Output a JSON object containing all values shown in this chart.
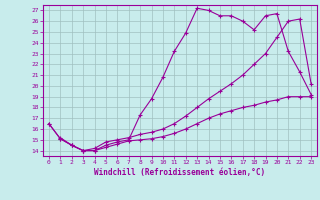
{
  "xlabel": "Windchill (Refroidissement éolien,°C)",
  "background_color": "#c8ecec",
  "grid_color": "#a0c0c0",
  "line_color": "#990099",
  "xlim": [
    -0.5,
    23.5
  ],
  "ylim": [
    13.5,
    27.5
  ],
  "xticks": [
    0,
    1,
    2,
    3,
    4,
    5,
    6,
    7,
    8,
    9,
    10,
    11,
    12,
    13,
    14,
    15,
    16,
    17,
    18,
    19,
    20,
    21,
    22,
    23
  ],
  "yticks": [
    14,
    15,
    16,
    17,
    18,
    19,
    20,
    21,
    22,
    23,
    24,
    25,
    26,
    27
  ],
  "line1_x": [
    0,
    1,
    2,
    3,
    4,
    5,
    6,
    7,
    8,
    9,
    10,
    11,
    12,
    13,
    14,
    15,
    16,
    17,
    18,
    19,
    20,
    21,
    22,
    23
  ],
  "line1_y": [
    16.5,
    15.1,
    14.5,
    14.0,
    14.0,
    14.5,
    14.8,
    15.0,
    17.3,
    18.8,
    20.8,
    23.2,
    24.9,
    27.2,
    27.0,
    26.5,
    26.5,
    26.0,
    25.2,
    26.5,
    26.7,
    23.2,
    21.3,
    19.2
  ],
  "line2_x": [
    0,
    1,
    2,
    3,
    4,
    5,
    6,
    7,
    8,
    9,
    10,
    11,
    12,
    13,
    14,
    15,
    16,
    17,
    18,
    19,
    20,
    21,
    22,
    23
  ],
  "line2_y": [
    16.5,
    15.1,
    14.5,
    14.0,
    14.0,
    14.3,
    14.6,
    14.9,
    15.0,
    15.1,
    15.3,
    15.6,
    16.0,
    16.5,
    17.0,
    17.4,
    17.7,
    18.0,
    18.2,
    18.5,
    18.7,
    19.0,
    19.0,
    19.0
  ],
  "line3_x": [
    1,
    2,
    3,
    4,
    5,
    6,
    7,
    8,
    9,
    10,
    11,
    12,
    13,
    14,
    15,
    16,
    17,
    18,
    19,
    20,
    21,
    22,
    23
  ],
  "line3_y": [
    15.2,
    14.5,
    14.0,
    14.2,
    14.8,
    15.0,
    15.2,
    15.5,
    15.7,
    16.0,
    16.5,
    17.2,
    18.0,
    18.8,
    19.5,
    20.2,
    21.0,
    22.0,
    23.0,
    24.5,
    26.0,
    26.2,
    20.2
  ]
}
